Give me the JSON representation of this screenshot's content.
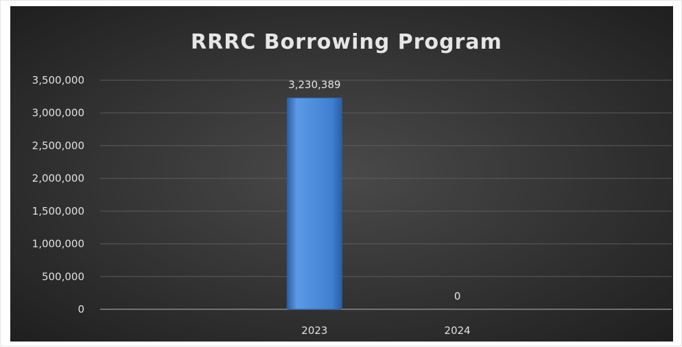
{
  "chart_data": {
    "type": "bar",
    "title": "RRRC Borrowing Program",
    "categories": [
      "2023",
      "2024"
    ],
    "values": [
      3230389,
      0
    ],
    "data_labels": [
      "3,230,389",
      "0"
    ],
    "xlabel": "",
    "ylabel": "",
    "ylim": [
      0,
      3500000
    ],
    "y_ticks": [
      0,
      500000,
      1000000,
      1500000,
      2000000,
      2500000,
      3000000,
      3500000
    ],
    "y_tick_labels": [
      "0",
      "500,000",
      "1,000,000",
      "1,500,000",
      "2,000,000",
      "2,500,000",
      "3,000,000",
      "3,500,000"
    ],
    "grid": true,
    "legend": "none",
    "colors": {
      "background_center": "#4a4a4a",
      "background_edge": "#1c1c1c",
      "bar": "#3f7fd0",
      "bar_dark": "#2a5ea6",
      "bar_light": "#5b9ae6",
      "gridline": "#5c5c5c",
      "text": "#e2e2e2"
    }
  }
}
